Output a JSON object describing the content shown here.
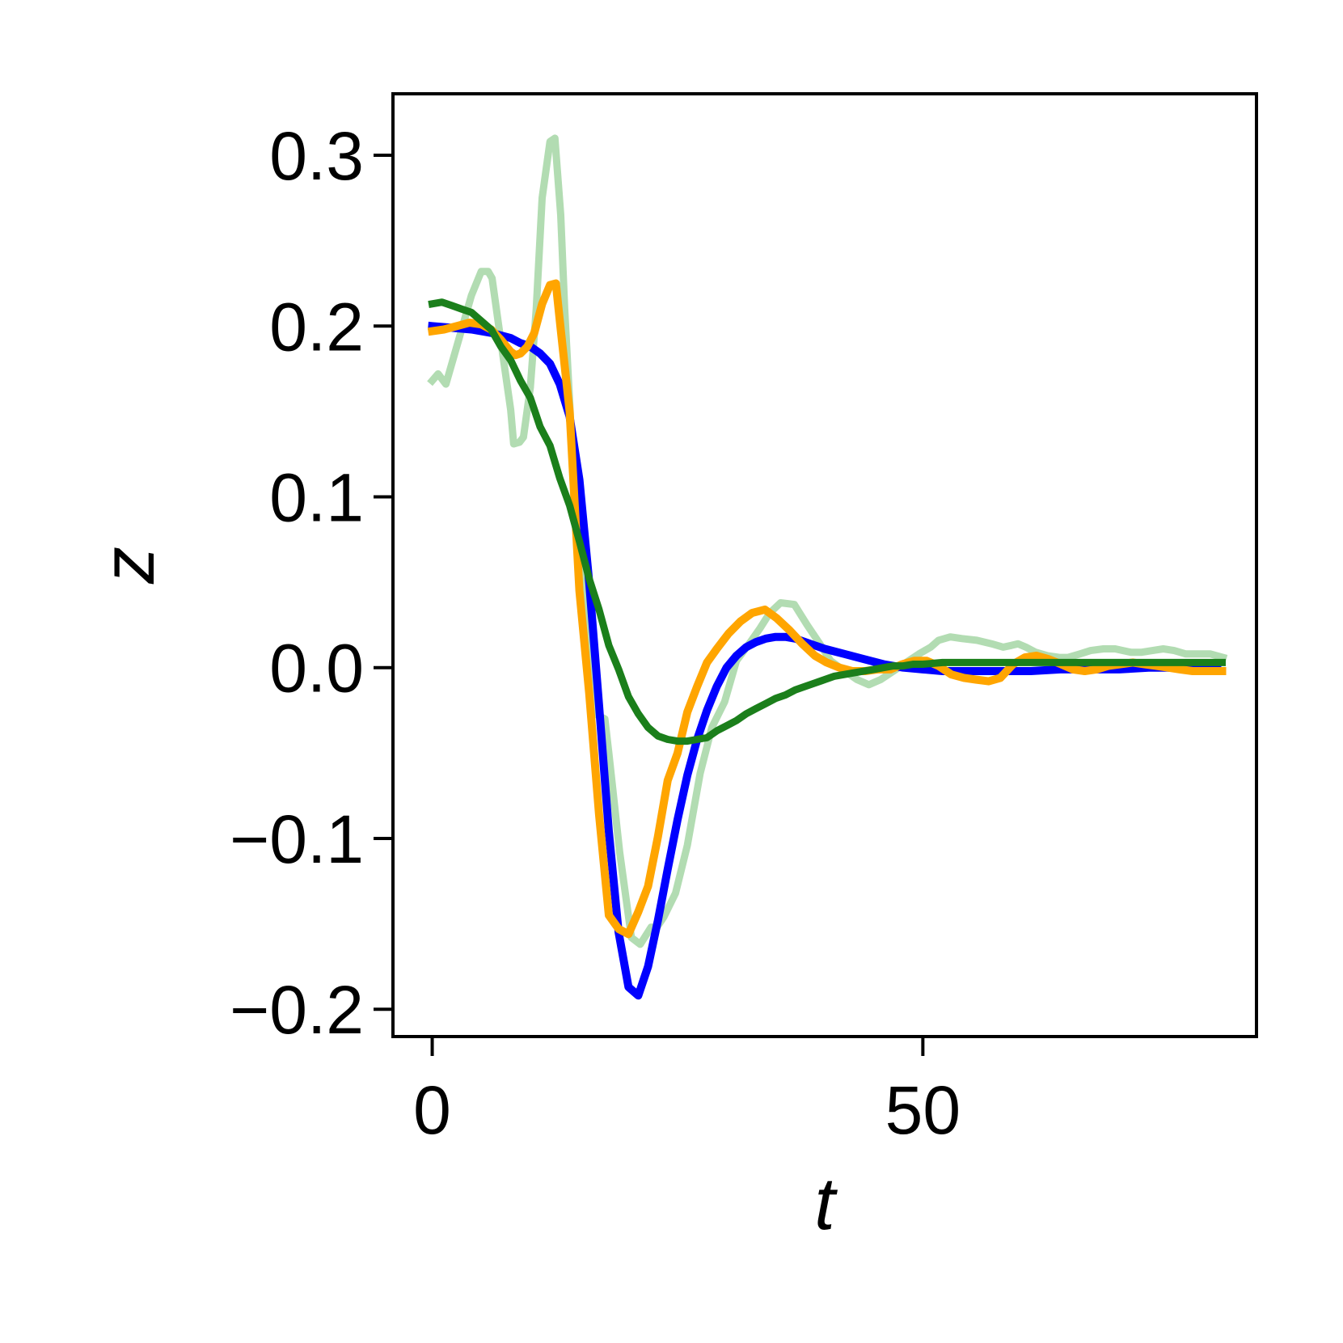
{
  "chart_data": {
    "type": "line",
    "title": "",
    "xlabel": "t",
    "ylabel": "z",
    "xlim": [
      -4,
      84
    ],
    "ylim": [
      -0.216,
      0.336
    ],
    "grid": false,
    "legend": "none",
    "x_ticks": [
      {
        "value": 0,
        "label": "0"
      },
      {
        "value": 50,
        "label": "50"
      }
    ],
    "y_ticks": [
      {
        "value": -0.2,
        "label": "−0.2"
      },
      {
        "value": -0.1,
        "label": "−0.1"
      },
      {
        "value": 0.0,
        "label": "0.0"
      },
      {
        "value": 0.1,
        "label": "0.1"
      },
      {
        "value": 0.2,
        "label": "0.2"
      },
      {
        "value": 0.3,
        "label": "0.3"
      }
    ],
    "series": [
      {
        "color": "#b2dcb2",
        "width": 9,
        "x": [
          0,
          0.6,
          1.4,
          2.7,
          4,
          5,
          5.7,
          6.1,
          7,
          8,
          8.3,
          8.9,
          9.3,
          10,
          10.6,
          11.2,
          12,
          12.5,
          13.1,
          13.5,
          14.1,
          15,
          15.6,
          16.3,
          16.9,
          17.6,
          18,
          19.1,
          20.3,
          21.2,
          22.3,
          22.9,
          23.6,
          24.8,
          26,
          27.3,
          28.5,
          29.8,
          31,
          32.3,
          33.4,
          34.4,
          35.5,
          36.9,
          38.2,
          39.5,
          40.6,
          41.8,
          43.3,
          44.5,
          45.7,
          47,
          48.3,
          49.6,
          50.8,
          51.6,
          52.8,
          54,
          55.5,
          57,
          58.2,
          59,
          59.7,
          60.5,
          61.5,
          62.7,
          63.9,
          64.8,
          66,
          67.1,
          68.4,
          69.6,
          70.4,
          71.2,
          72.3,
          73.4,
          74.5,
          75.6,
          76.8,
          78,
          79.3,
          80.6
        ],
        "y": [
          0.168,
          0.172,
          0.166,
          0.192,
          0.218,
          0.232,
          0.232,
          0.228,
          0.191,
          0.151,
          0.131,
          0.132,
          0.135,
          0.164,
          0.21,
          0.275,
          0.308,
          0.31,
          0.265,
          0.21,
          0.145,
          0.075,
          0.04,
          0.0,
          -0.028,
          -0.03,
          -0.05,
          -0.108,
          -0.158,
          -0.162,
          -0.152,
          -0.152,
          -0.146,
          -0.132,
          -0.104,
          -0.062,
          -0.035,
          -0.02,
          0.004,
          0.014,
          0.023,
          0.032,
          0.038,
          0.037,
          0.025,
          0.014,
          0.004,
          -0.001,
          -0.007,
          -0.01,
          -0.007,
          -0.002,
          0.003,
          0.008,
          0.012,
          0.016,
          0.018,
          0.017,
          0.016,
          0.014,
          0.012,
          0.013,
          0.014,
          0.012,
          0.009,
          0.007,
          0.006,
          0.006,
          0.008,
          0.01,
          0.011,
          0.011,
          0.01,
          0.009,
          0.009,
          0.01,
          0.011,
          0.01,
          0.008,
          0.008,
          0.008,
          0.006
        ]
      },
      {
        "color": "#0000ff",
        "width": 10,
        "x": [
          0,
          2,
          4,
          6,
          8,
          9,
          10,
          11,
          12,
          13,
          14,
          15,
          16,
          17,
          18,
          19,
          20,
          21,
          22,
          23,
          24,
          25,
          26,
          27,
          28,
          29,
          30,
          31,
          32,
          33,
          34,
          35,
          36,
          37,
          38,
          39,
          40,
          42,
          44,
          46,
          48,
          50,
          52,
          55,
          58,
          61,
          64,
          67,
          70,
          73,
          76,
          80
        ],
        "y": [
          0.2,
          0.199,
          0.198,
          0.196,
          0.193,
          0.19,
          0.188,
          0.184,
          0.178,
          0.166,
          0.147,
          0.11,
          0.05,
          -0.022,
          -0.096,
          -0.155,
          -0.187,
          -0.192,
          -0.175,
          -0.148,
          -0.118,
          -0.089,
          -0.063,
          -0.042,
          -0.025,
          -0.011,
          0.0,
          0.007,
          0.012,
          0.015,
          0.017,
          0.018,
          0.018,
          0.017,
          0.015,
          0.013,
          0.011,
          0.008,
          0.005,
          0.002,
          0.0,
          -0.001,
          -0.002,
          -0.002,
          -0.002,
          -0.002,
          -0.001,
          -0.001,
          -0.001,
          0.0,
          0.0,
          0.0
        ]
      },
      {
        "color": "#ffa500",
        "width": 10,
        "x": [
          0,
          1.2,
          2.5,
          3.8,
          5,
          6,
          7,
          8,
          8.5,
          9,
          9.7,
          10.4,
          11.2,
          12,
          12.6,
          13.1,
          14,
          15,
          16,
          17,
          18,
          19,
          20,
          21,
          22,
          23,
          24,
          25,
          26,
          27,
          28,
          29,
          30.2,
          31.4,
          32.6,
          33.9,
          35.1,
          36.4,
          37.7,
          39,
          40.2,
          41.5,
          42.8,
          44.1,
          45.4,
          46.7,
          47.9,
          49.1,
          50.4,
          51.6,
          52.9,
          54.2,
          55.4,
          56.7,
          57.9,
          59.2,
          60.4,
          61.6,
          62.8,
          64.1,
          65.3,
          66.5,
          67.7,
          68.9,
          70.1,
          71.4,
          72.6,
          73.8,
          75,
          76.2,
          77.5,
          78.7,
          79.9,
          80.5
        ],
        "y": [
          0.197,
          0.198,
          0.2,
          0.202,
          0.201,
          0.198,
          0.192,
          0.185,
          0.183,
          0.184,
          0.188,
          0.196,
          0.213,
          0.224,
          0.225,
          0.198,
          0.15,
          0.045,
          -0.015,
          -0.086,
          -0.145,
          -0.153,
          -0.156,
          -0.143,
          -0.128,
          -0.099,
          -0.066,
          -0.05,
          -0.026,
          -0.011,
          0.003,
          0.011,
          0.02,
          0.027,
          0.032,
          0.034,
          0.029,
          0.022,
          0.014,
          0.007,
          0.003,
          0.0,
          -0.002,
          -0.002,
          -0.001,
          -0.001,
          0.002,
          0.004,
          0.004,
          0.001,
          -0.004,
          -0.006,
          -0.007,
          -0.008,
          -0.006,
          0.002,
          0.006,
          0.007,
          0.005,
          0.002,
          -0.001,
          -0.002,
          -0.001,
          0.001,
          0.002,
          0.003,
          0.002,
          0.001,
          0.0,
          -0.001,
          -0.002,
          -0.002,
          -0.002,
          -0.002
        ]
      },
      {
        "color": "#1b7f1b",
        "width": 9,
        "x": [
          0,
          1,
          2,
          3,
          4,
          5,
          6,
          7,
          8,
          9,
          10,
          11,
          12,
          13,
          14,
          15,
          16,
          17,
          18,
          19,
          20,
          21,
          22,
          23,
          24,
          25,
          26,
          27,
          28,
          29,
          30,
          31,
          32,
          33,
          34,
          35,
          36,
          37,
          38,
          39,
          40,
          41,
          42,
          43,
          44,
          45,
          46,
          47,
          48,
          49,
          50,
          52,
          54,
          56,
          58,
          60,
          62,
          64,
          66,
          68,
          70,
          72,
          74,
          76,
          78,
          80.5
        ],
        "y": [
          0.213,
          0.214,
          0.212,
          0.21,
          0.208,
          0.203,
          0.198,
          0.188,
          0.18,
          0.168,
          0.158,
          0.141,
          0.13,
          0.111,
          0.095,
          0.074,
          0.052,
          0.034,
          0.013,
          -0.001,
          -0.017,
          -0.027,
          -0.035,
          -0.04,
          -0.042,
          -0.043,
          -0.043,
          -0.042,
          -0.041,
          -0.037,
          -0.034,
          -0.031,
          -0.027,
          -0.024,
          -0.021,
          -0.018,
          -0.016,
          -0.013,
          -0.011,
          -0.009,
          -0.007,
          -0.005,
          -0.004,
          -0.003,
          -0.002,
          -0.001,
          0.0,
          0.001,
          0.001,
          0.002,
          0.002,
          0.003,
          0.003,
          0.003,
          0.003,
          0.003,
          0.003,
          0.003,
          0.003,
          0.003,
          0.003,
          0.003,
          0.003,
          0.003,
          0.003,
          0.003
        ]
      }
    ]
  }
}
